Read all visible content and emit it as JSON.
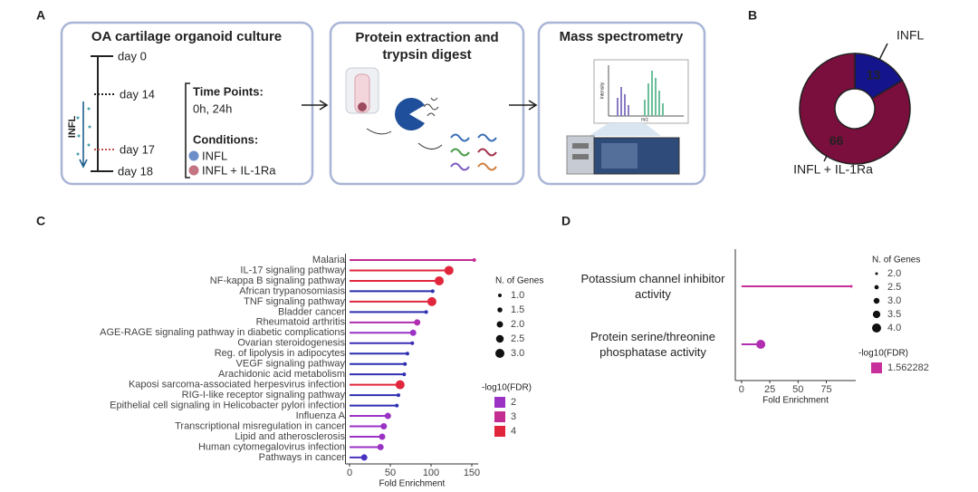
{
  "panels": [
    "A",
    "B",
    "C",
    "D"
  ],
  "workflow": {
    "culture": {
      "title": "OA cartilage organoid culture",
      "days": [
        "day 0",
        "day 14",
        "day 17",
        "day 18"
      ],
      "treatment": "INFL",
      "time_points_title": "Time Points:",
      "time_points": "0h, 24h",
      "conditions_title": "Conditions:",
      "conditions": [
        "INFL",
        "INFL + IL-1Ra"
      ]
    },
    "extraction": {
      "title": "Protein extraction and trypsin digest"
    },
    "ms": {
      "title": "Mass spectrometry",
      "y_label": "Intensity",
      "x_label": "m/z"
    }
  },
  "chart_data": [
    {
      "type": "pie",
      "categories": [
        "INFL",
        "INFL + IL-1Ra"
      ],
      "values": [
        13,
        66
      ],
      "colors": [
        "#14148c",
        "#7a0e3c"
      ]
    },
    {
      "type": "lollipop",
      "categories": [
        "Malaria",
        "IL-17 signaling pathway",
        "NF-kappa B signaling pathway",
        "African trypanosomiasis",
        "TNF signaling pathway",
        "Bladder cancer",
        "Rheumatoid arthritis",
        "AGE-RAGE signaling pathway in diabetic complications",
        "Ovarian steroidogenesis",
        "Reg. of lipolysis in adipocytes",
        "VEGF signaling pathway",
        "Arachidonic acid metabolism",
        "Kaposi sarcoma-associated herpesvirus infection",
        "RIG-I-like receptor signaling pathway",
        "Epithelial cell signaling in Helicobacter pylori infection",
        "Influenza A",
        "Transcriptional misregulation in cancer",
        "Lipid and atherosclerosis",
        "Human cytomegalovirus infection",
        "Pathways in cancer"
      ],
      "values": [
        153,
        122,
        110,
        102,
        101,
        94,
        83,
        78,
        77,
        71,
        68,
        67,
        62,
        60,
        58,
        47,
        42,
        40,
        38,
        18
      ],
      "sizes": [
        1,
        3,
        3,
        1,
        3,
        1,
        2,
        2,
        1,
        1,
        1,
        1,
        3,
        1,
        1,
        2,
        2,
        2,
        2,
        2
      ],
      "colors": [
        "#c12d93",
        "#e0253c",
        "#e0253c",
        "#2e2eb0",
        "#e0253c",
        "#2e2eb0",
        "#b02eb0",
        "#9a33c4",
        "#3a2eb8",
        "#2e2eb0",
        "#2e2eb0",
        "#2e2eb0",
        "#e0253c",
        "#2e2eb0",
        "#2e2eb0",
        "#9a33c4",
        "#9a33c4",
        "#9a33c4",
        "#9a33c4",
        "#4a30c0"
      ],
      "x_label": "Fold Enrichment",
      "xlim": [
        -5,
        158
      ],
      "xticks": [
        0,
        50,
        100,
        150
      ],
      "size_legend": {
        "title": "N. of Genes",
        "ticks": [
          {
            "value": 1,
            "label": "1.0"
          },
          {
            "value": 1.5,
            "label": "1.5"
          },
          {
            "value": 2,
            "label": "2.0"
          },
          {
            "value": 2.5,
            "label": "2.5"
          },
          {
            "value": 3,
            "label": "3.0"
          }
        ]
      },
      "color_legend": {
        "title": "-log10(FDR)",
        "values": [
          2,
          3,
          4
        ],
        "colors": [
          "#9a33c4",
          "#c42d92",
          "#e0253c"
        ]
      }
    },
    {
      "type": "lollipop",
      "categories": [
        "Potassium channel inhibitor activity",
        "Protein serine/threonine phosphatase activity"
      ],
      "values": [
        97,
        17
      ],
      "sizes": [
        2,
        4
      ],
      "colors": [
        "#c7309a",
        "#b02eb0"
      ],
      "x_label": "Fold Enrichment",
      "xlim": [
        -5.5,
        101
      ],
      "xticks": [
        0,
        25,
        50,
        75
      ],
      "size_legend": {
        "title": "N. of Genes",
        "ticks": [
          {
            "value": 2,
            "label": "2.0"
          },
          {
            "value": 2.5,
            "label": "2.5"
          },
          {
            "value": 3,
            "label": "3.0"
          },
          {
            "value": 3.5,
            "label": "3.5"
          },
          {
            "value": 4,
            "label": "4.0"
          }
        ]
      },
      "color_legend": {
        "title": "-log10(FDR)",
        "values": [
          1.562282
        ],
        "colors": [
          "#c7309a"
        ]
      }
    }
  ]
}
